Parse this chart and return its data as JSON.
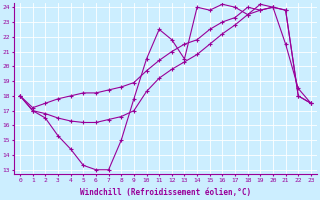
{
  "xlabel": "Windchill (Refroidissement éolien,°C)",
  "bg_color": "#cceeff",
  "line_color": "#990099",
  "xlim": [
    -0.5,
    23.5
  ],
  "ylim": [
    12.7,
    24.3
  ],
  "yticks": [
    13,
    14,
    15,
    16,
    17,
    18,
    19,
    20,
    21,
    22,
    23,
    24
  ],
  "xticks": [
    0,
    1,
    2,
    3,
    4,
    5,
    6,
    7,
    8,
    9,
    10,
    11,
    12,
    13,
    14,
    15,
    16,
    17,
    18,
    19,
    20,
    21,
    22,
    23
  ],
  "line1_x": [
    0,
    1,
    2,
    3,
    4,
    5,
    6,
    7,
    8,
    9,
    10,
    11,
    12,
    13,
    14,
    15,
    16,
    17,
    18,
    19,
    20,
    21,
    22,
    23
  ],
  "line1_y": [
    18.0,
    17.0,
    16.5,
    15.3,
    14.4,
    13.3,
    13.0,
    13.0,
    15.0,
    17.8,
    20.5,
    22.5,
    21.8,
    20.5,
    24.0,
    23.8,
    24.2,
    24.0,
    23.5,
    24.2,
    24.0,
    21.5,
    18.5,
    17.5
  ],
  "line2_x": [
    0,
    1,
    2,
    3,
    4,
    5,
    6,
    7,
    8,
    9,
    10,
    11,
    12,
    13,
    14,
    15,
    16,
    17,
    18,
    19,
    20,
    21,
    22,
    23
  ],
  "line2_y": [
    18.0,
    17.0,
    16.8,
    16.5,
    16.3,
    16.2,
    16.2,
    16.4,
    16.6,
    17.0,
    18.3,
    19.2,
    19.8,
    20.3,
    20.8,
    21.5,
    22.2,
    22.8,
    23.5,
    23.8,
    24.0,
    23.8,
    18.0,
    17.5
  ],
  "line3_x": [
    0,
    1,
    2,
    3,
    4,
    5,
    6,
    7,
    8,
    9,
    10,
    11,
    12,
    13,
    14,
    15,
    16,
    17,
    18,
    19,
    20,
    21,
    22,
    23
  ],
  "line3_y": [
    18.0,
    17.2,
    17.5,
    17.8,
    18.0,
    18.2,
    18.2,
    18.4,
    18.6,
    18.9,
    19.7,
    20.4,
    21.0,
    21.5,
    21.8,
    22.5,
    23.0,
    23.3,
    24.0,
    23.8,
    24.0,
    23.8,
    18.0,
    17.5
  ],
  "markersize": 2.5,
  "linewidth": 0.8
}
